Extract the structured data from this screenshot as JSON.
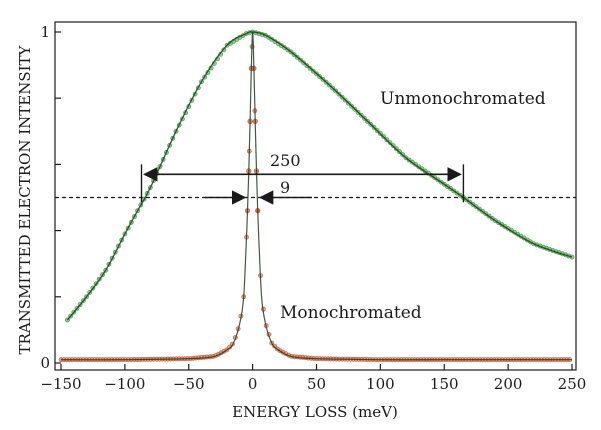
{
  "chart_data": {
    "type": "line",
    "title": "",
    "xlabel": "ENERGY LOSS (meV)",
    "ylabel": "TRANSMITTED ELECTRON INTENSITY",
    "xlim": [
      -150,
      250
    ],
    "ylim": [
      0,
      1
    ],
    "x_ticks": [
      -150,
      -100,
      -50,
      0,
      50,
      100,
      150,
      200,
      250
    ],
    "x_tick_labels": [
      "−150",
      "−100",
      "−50",
      "0",
      "50",
      "100",
      "150",
      "200",
      "250"
    ],
    "y_ticks": [
      0,
      0.2,
      0.4,
      0.6,
      0.8,
      1
    ],
    "y_tick_labels": [
      "0",
      "",
      "",
      "",
      "",
      "1"
    ],
    "half_max_level": 0.5,
    "series": [
      {
        "name": "Unmonochromated",
        "color": "#3c9a3c",
        "x": [
          -145,
          -130,
          -115,
          -100,
          -90,
          -80,
          -60,
          -40,
          -20,
          -5,
          0,
          10,
          30,
          60,
          90,
          120,
          150,
          165,
          190,
          220,
          250
        ],
        "y": [
          0.13,
          0.2,
          0.28,
          0.39,
          0.46,
          0.53,
          0.7,
          0.85,
          0.96,
          0.995,
          1.0,
          0.99,
          0.94,
          0.84,
          0.73,
          0.62,
          0.54,
          0.5,
          0.43,
          0.36,
          0.32
        ]
      },
      {
        "name": "Monochromated",
        "color": "#cc5533",
        "x": [
          -150,
          -100,
          -50,
          -30,
          -20,
          -15,
          -10,
          -7,
          -5,
          -4,
          -3,
          -2,
          -1,
          0,
          1,
          2,
          3,
          4,
          5,
          7,
          10,
          15,
          20,
          30,
          50,
          100,
          150,
          200,
          250
        ],
        "y": [
          0.01,
          0.01,
          0.013,
          0.02,
          0.04,
          0.06,
          0.12,
          0.2,
          0.36,
          0.46,
          0.58,
          0.73,
          0.89,
          1.0,
          0.89,
          0.73,
          0.58,
          0.46,
          0.36,
          0.2,
          0.12,
          0.06,
          0.04,
          0.02,
          0.013,
          0.01,
          0.01,
          0.01,
          0.01
        ]
      }
    ],
    "annotations": [
      {
        "text": "250",
        "kind": "fwhm",
        "x_from": -87,
        "x_to": 165,
        "level": 0.57
      },
      {
        "text": "9",
        "kind": "fwhm-inward",
        "x_from": -4.5,
        "x_to": 4.5,
        "level": 0.5
      }
    ]
  },
  "labels": {
    "unmono": "Unmonochromated",
    "mono": "Monochromated",
    "fwhm_unmono": "250",
    "fwhm_mono": "9"
  }
}
